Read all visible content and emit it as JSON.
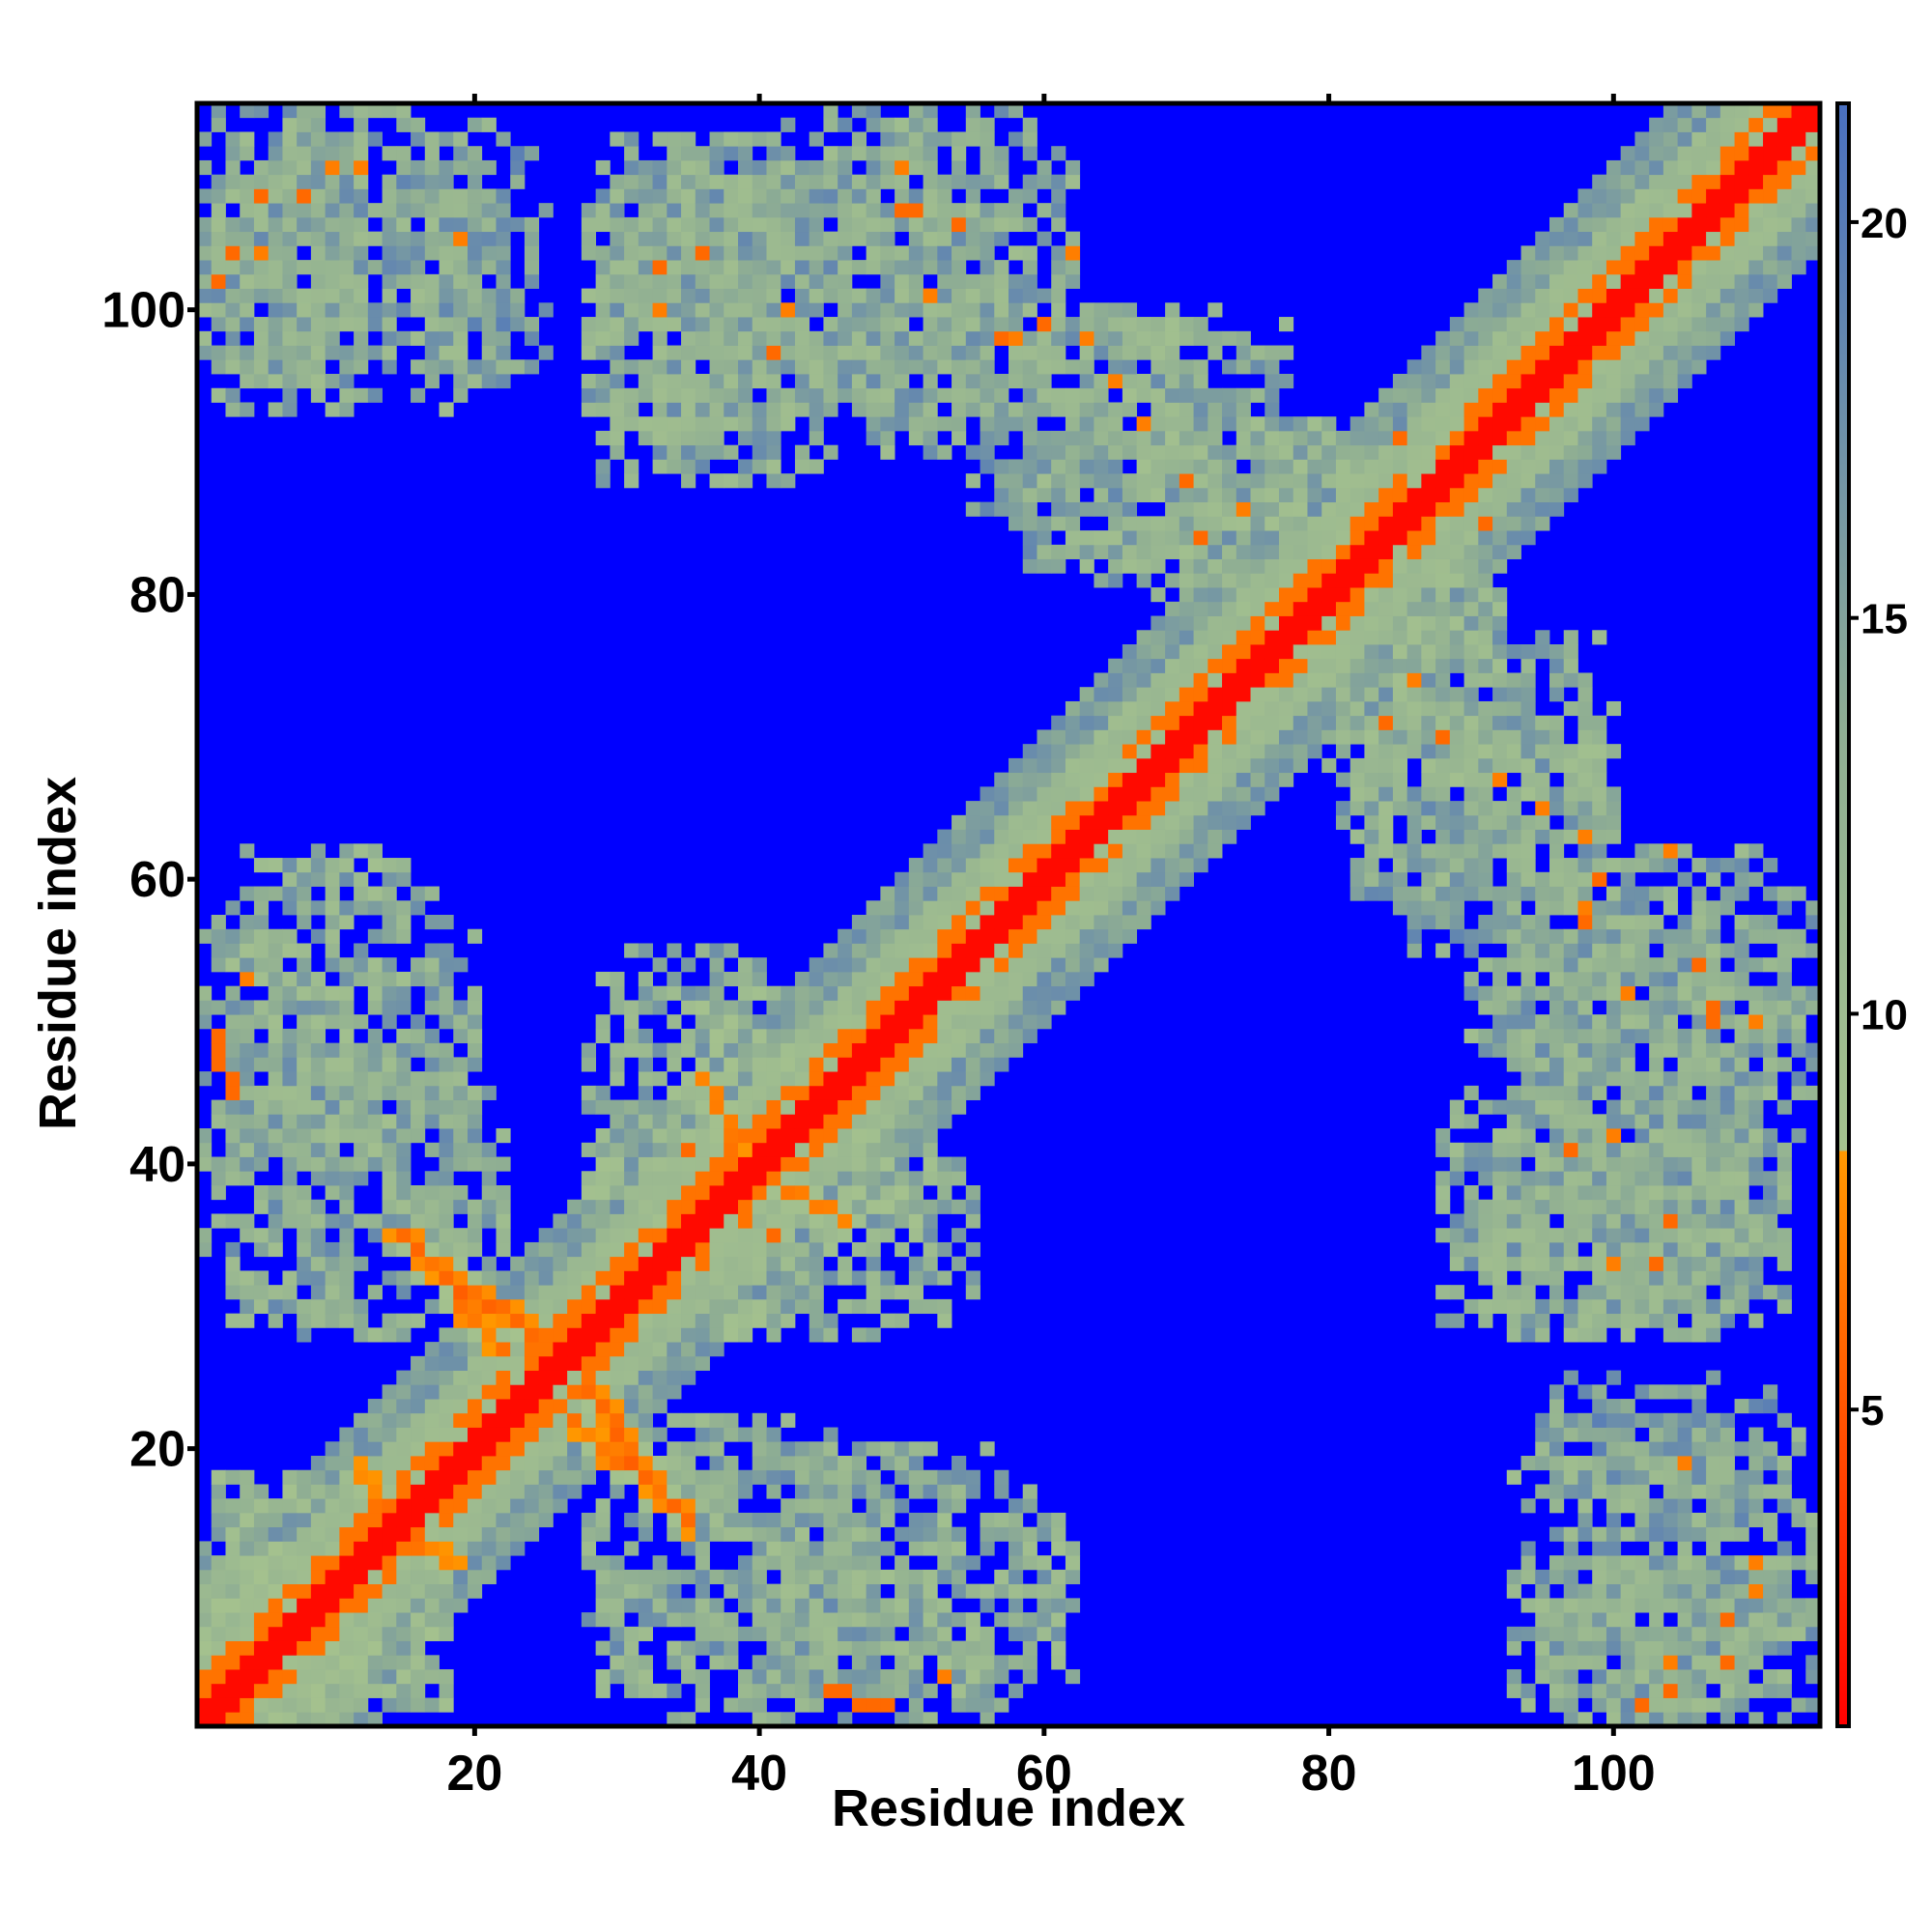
{
  "chart_data": {
    "type": "heatmap",
    "title": "",
    "xlabel": "Residue index",
    "ylabel": "Residue index",
    "n_residues": 114,
    "xlim": [
      1,
      114
    ],
    "ylim": [
      1,
      114
    ],
    "xticks": [
      20,
      40,
      60,
      80,
      100
    ],
    "yticks": [
      20,
      40,
      60,
      80,
      100
    ],
    "colorbar": {
      "ticks": [
        5,
        10,
        15,
        20
      ],
      "range": [
        1,
        21.5
      ],
      "colormap": [
        {
          "value": 1,
          "color": "#ff0000"
        },
        {
          "value": 8.3,
          "color": "#ff9900"
        },
        {
          "value": 8.31,
          "color": "#a5c28e"
        },
        {
          "value": 13.5,
          "color": "#8fae93"
        },
        {
          "value": 21.5,
          "color": "#4a70c0"
        }
      ],
      "background_color": "#0000ff"
    },
    "symmetric": true,
    "diagonal_band": [
      {
        "offset_max": 1,
        "value": 1.5
      },
      {
        "offset_max": 3,
        "value": 6.5
      },
      {
        "offset_max": 6,
        "value": 10
      },
      {
        "offset_max": 10,
        "value": 15
      }
    ],
    "contact_regions": [
      {
        "x": [
          1,
          20
        ],
        "y": [
          40,
          62
        ],
        "value": 13.5,
        "density": 0.78,
        "hot_spots": [
          [
            2,
            48,
            6
          ],
          [
            3,
            46,
            6
          ],
          [
            4,
            53,
            7
          ],
          [
            14,
            35,
            8
          ]
        ]
      },
      {
        "x": [
          1,
          12
        ],
        "y": [
          93,
          114
        ],
        "value": 14,
        "density": 0.75,
        "hot_spots": [
          [
            3,
            104,
            6
          ],
          [
            5,
            108,
            6
          ],
          [
            10,
            110,
            7
          ]
        ]
      },
      {
        "x": [
          15,
          25
        ],
        "y": [
          95,
          112
        ],
        "value": 15,
        "density": 0.7,
        "hot_spots": [
          [
            19,
            105,
            7
          ]
        ]
      },
      {
        "x": [
          28,
          42
        ],
        "y": [
          88,
          112
        ],
        "value": 14,
        "density": 0.75,
        "hot_spots": [
          [
            36,
            104,
            6
          ],
          [
            33,
            100,
            7
          ]
        ]
      },
      {
        "x": [
          40,
          58
        ],
        "y": [
          92,
          114
        ],
        "value": 14,
        "density": 0.72,
        "hot_spots": [
          [
            51,
            107,
            6
          ],
          [
            54,
            106,
            6
          ],
          [
            58,
            98,
            7
          ],
          [
            62,
            104,
            7
          ]
        ]
      },
      {
        "x": [
          55,
          72
        ],
        "y": [
          82,
          100
        ],
        "value": 14.5,
        "density": 0.7,
        "hot_spots": [
          [
            60,
            99,
            6
          ],
          [
            63,
            98,
            7
          ],
          [
            67,
            92,
            7
          ]
        ]
      },
      {
        "x": [
          70,
          88
        ],
        "y": [
          78,
          92
        ],
        "value": 13.5,
        "density": 0.72,
        "hot_spots": [
          [
            71,
            84,
            6
          ],
          [
            74,
            86,
            7
          ],
          [
            85,
            91,
            6
          ]
        ]
      },
      {
        "x": [
          80,
          100
        ],
        "y": [
          60,
          78
        ],
        "value": 13.5,
        "density": 0.72,
        "hot_spots": [
          [
            88,
            70,
            6
          ],
          [
            95,
            65,
            7
          ]
        ]
      },
      {
        "x": [
          90,
          114
        ],
        "y": [
          46,
          62
        ],
        "value": 14,
        "density": 0.72,
        "hot_spots": [
          [
            98,
            57,
            6
          ],
          [
            101,
            52,
            7
          ],
          [
            107,
            50,
            6
          ],
          [
            110,
            50,
            7
          ]
        ]
      },
      {
        "x": [
          88,
          112
        ],
        "y": [
          28,
          46
        ],
        "value": 14,
        "density": 0.72,
        "hot_spots": [
          [
            97,
            41,
            6
          ],
          [
            100,
            42,
            7
          ],
          [
            103,
            33,
            6
          ]
        ]
      },
      {
        "x": [
          93,
          114
        ],
        "y": [
          1,
          22
        ],
        "value": 14,
        "density": 0.7,
        "hot_spots": [
          [
            102,
            2,
            6
          ],
          [
            104,
            5,
            7
          ],
          [
            108,
            8,
            6
          ],
          [
            110,
            12,
            7
          ]
        ]
      },
      {
        "x": [
          28,
          48
        ],
        "y": [
          1,
          22
        ],
        "value": 14,
        "density": 0.74,
        "hot_spots": [
          [
            45,
            3,
            6
          ],
          [
            47,
            2,
            6
          ],
          [
            49,
            2,
            6
          ],
          [
            32,
            18,
            7
          ],
          [
            30,
            20,
            7
          ]
        ]
      },
      {
        "x": [
          30,
          55
        ],
        "y": [
          28,
          46
        ],
        "value": 13,
        "density": 0.75,
        "hot_spots": [
          [
            35,
            41,
            6
          ],
          [
            38,
            43,
            7
          ],
          [
            41,
            40,
            6
          ]
        ]
      },
      {
        "x": [
          1,
          12
        ],
        "y": [
          1,
          18
        ],
        "value": 12.5,
        "density": 0.8,
        "hot_spots": []
      }
    ],
    "antidiagonal_streaks": [
      {
        "from": [
          15,
          35
        ],
        "to": [
          24,
          28
        ],
        "value": 6.5
      },
      {
        "from": [
          27,
          22
        ],
        "to": [
          34,
          16
        ],
        "value": 6.5
      },
      {
        "from": [
          38,
          40
        ],
        "to": [
          46,
          36
        ],
        "value": 7.5
      },
      {
        "from": [
          13,
          17
        ],
        "to": [
          18,
          12
        ],
        "value": 7
      }
    ]
  }
}
